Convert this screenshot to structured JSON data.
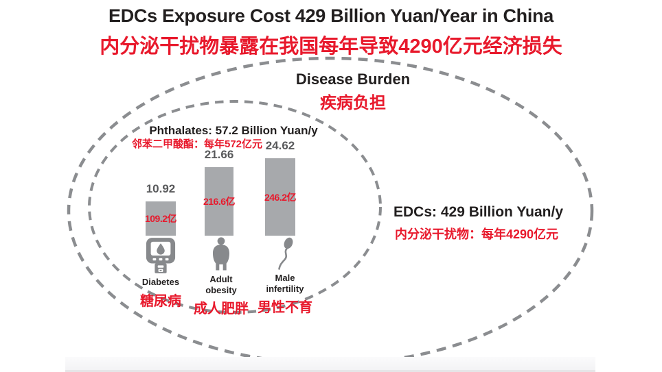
{
  "header": {
    "title_en": "EDCs Exposure Cost 429 Billion Yuan/Year in China",
    "title_zh": "内分泌干扰物暴露在我国每年导致4290亿元经济损失"
  },
  "disease_burden": {
    "en": "Disease Burden",
    "zh": "疾病负担"
  },
  "phthalates": {
    "en": "Phthalates: 57.2 Billion Yuan/y",
    "zh": "邻苯二甲酸酯：每年572亿元"
  },
  "edcs": {
    "en": "EDCs: 429 Billion Yuan/y",
    "zh": "内分泌干扰物：每年4290亿元"
  },
  "bars": [
    {
      "value": 10.92,
      "label_zh": "109.2亿",
      "name_en": "Diabetes",
      "name_zh": "糖尿病",
      "icon": "glucose-meter-icon"
    },
    {
      "value": 21.66,
      "label_zh": "216.6亿",
      "name_en": "Adult\nobesity",
      "name_zh": "成人肥胖",
      "icon": "obese-person-icon"
    },
    {
      "value": 24.62,
      "label_zh": "246.2亿",
      "name_en": "Male\ninfertility",
      "name_zh": "男性不育",
      "icon": "sperm-icon"
    }
  ],
  "colors": {
    "accent_red": "#e8192c",
    "bar_gray": "#a7a9ac",
    "icon_gray": "#87898c",
    "dash_gray": "#8b8d90",
    "value_gray": "#58595b",
    "text_black": "#221f1f"
  },
  "chart_data": {
    "type": "bar",
    "title": "EDCs Exposure Cost 429 Billion Yuan/Year in China",
    "title_zh": "内分泌干扰物暴露在我国每年导致4290亿元经济损失",
    "categories": [
      "Diabetes",
      "Adult obesity",
      "Male infertility"
    ],
    "categories_zh": [
      "糖尿病",
      "成人肥胖",
      "男性不育"
    ],
    "values": [
      10.92,
      21.66,
      24.62
    ],
    "bar_labels_zh": [
      "109.2亿",
      "216.6亿",
      "246.2亿"
    ],
    "unit": "Billion Yuan/y",
    "grid": false,
    "legend": false,
    "annotations": [
      {
        "label_en": "Disease Burden",
        "label_zh": "疾病负担",
        "region": "inner-area-title"
      },
      {
        "label_en": "Phthalates: 57.2 Billion Yuan/y",
        "label_zh": "邻苯二甲酸酯：每年572亿元",
        "region": "inner-ellipse"
      },
      {
        "label_en": "EDCs: 429 Billion Yuan/y",
        "label_zh": "内分泌干扰物：每年4290亿元",
        "region": "outer-ellipse"
      }
    ]
  }
}
